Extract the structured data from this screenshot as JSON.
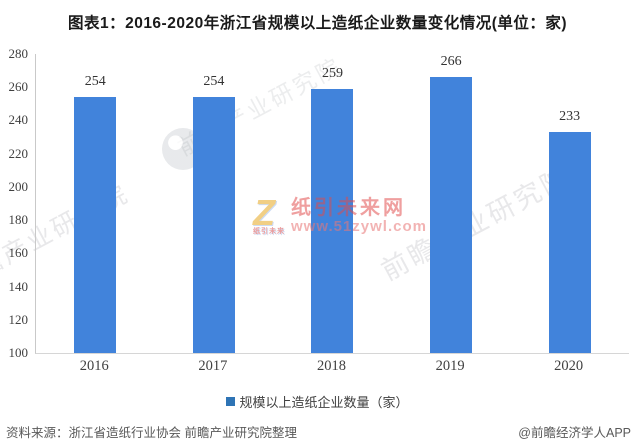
{
  "title": "图表1：2016-2020年浙江省规模以上造纸企业数量变化情况(单位：家)",
  "chart_data": {
    "type": "bar",
    "categories": [
      "2016",
      "2017",
      "2018",
      "2019",
      "2020"
    ],
    "values": [
      254,
      254,
      259,
      266,
      233
    ],
    "series_name": "规模以上造纸企业数量（家）",
    "title": "图表1：2016-2020年浙江省规模以上造纸企业数量变化情况(单位：家)",
    "xlabel": "",
    "ylabel": "",
    "ylim": [
      100,
      280
    ],
    "yticks": [
      280,
      260,
      240,
      220,
      200,
      180,
      160,
      140,
      120,
      100
    ],
    "grid": false,
    "legend_position": "bottom",
    "bar_color": "#4183DB"
  },
  "legend": {
    "label": "规模以上造纸企业数量（家）",
    "marker_color": "#2E74B5"
  },
  "footer": {
    "source": "资料来源：浙江省造纸行业协会 前瞻产业研究院整理",
    "credit": "@前瞻经济学人APP"
  },
  "watermarks": {
    "diagonal_text": "前瞻产业研究院",
    "center_logo": "Z",
    "center_logo_sub": "纸引未来",
    "center_brand": "纸引未来网",
    "center_url": "www.51zywl.com",
    "red_color": "#E04A4A"
  }
}
